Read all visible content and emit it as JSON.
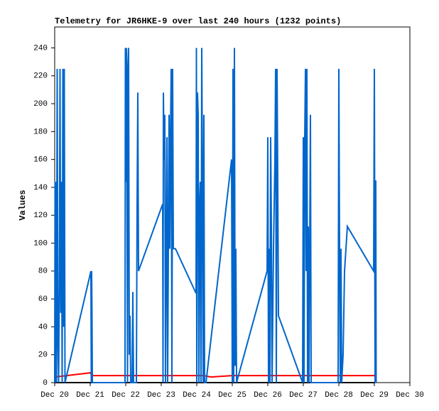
{
  "chart_data": {
    "type": "line",
    "title": "Telemetry for JR6HKE-9 over last 240 hours (1232 points)",
    "y_label": "Values",
    "xlim": [
      20,
      30
    ],
    "xticks": [
      {
        "value": 20,
        "label": "Dec 20"
      },
      {
        "value": 21,
        "label": "Dec 21"
      },
      {
        "value": 22,
        "label": "Dec 22"
      },
      {
        "value": 23,
        "label": "Dec 23"
      },
      {
        "value": 24,
        "label": "Dec 24"
      },
      {
        "value": 25,
        "label": "Dec 25"
      },
      {
        "value": 26,
        "label": "Dec 26"
      },
      {
        "value": 27,
        "label": "Dec 27"
      },
      {
        "value": 28,
        "label": "Dec 28"
      },
      {
        "value": 29,
        "label": "Dec 29"
      },
      {
        "value": 30,
        "label": "Dec 30"
      }
    ],
    "ylim": [
      0,
      255
    ],
    "yticks": [
      0,
      20,
      40,
      60,
      80,
      100,
      120,
      140,
      160,
      180,
      200,
      220,
      240
    ],
    "grid": false,
    "series": [
      {
        "color": "#000000",
        "x": [
          20,
          29
        ],
        "values": [
          0,
          0
        ]
      },
      {
        "color": "#ff0000",
        "x": [
          20.0,
          21.0,
          21.05,
          24.2,
          24.4,
          25.0,
          29.0
        ],
        "values": [
          4,
          7,
          5,
          5,
          4,
          5,
          5
        ]
      },
      {
        "color": "#0066cc",
        "x": [
          20.0,
          20.01,
          20.02,
          20.03,
          20.05,
          20.07,
          20.09,
          20.11,
          20.13,
          20.15,
          20.17,
          20.19,
          20.21,
          20.23,
          20.25,
          20.27,
          20.29,
          21.02,
          21.03,
          21.04,
          21.05,
          21.06,
          21.98,
          21.99,
          22.0,
          22.02,
          22.03,
          22.05,
          22.06,
          22.08,
          22.1,
          22.12,
          22.14,
          22.18,
          22.2,
          22.22,
          22.3,
          22.32,
          22.34,
          22.36,
          23.04,
          23.05,
          23.06,
          23.08,
          23.1,
          23.12,
          23.16,
          23.18,
          23.22,
          23.24,
          23.26,
          23.28,
          23.3,
          23.32,
          23.34,
          23.4,
          23.98,
          23.99,
          24.0,
          24.02,
          24.04,
          24.06,
          24.08,
          24.1,
          24.12,
          24.14,
          24.16,
          24.18,
          24.2,
          24.22,
          24.26,
          24.98,
          25.0,
          25.02,
          25.04,
          25.06,
          25.08,
          25.1,
          25.12,
          25.98,
          26.0,
          26.02,
          26.04,
          26.06,
          26.08,
          26.1,
          26.12,
          26.16,
          26.2,
          26.22,
          26.24,
          26.26,
          26.28,
          26.3,
          26.98,
          27.0,
          27.02,
          27.04,
          27.06,
          27.08,
          27.1,
          27.12,
          27.14,
          27.16,
          27.2,
          27.22,
          27.98,
          28.0,
          28.02,
          28.04,
          28.06,
          28.08,
          28.12,
          28.16,
          28.2,
          28.24,
          28.98,
          29.0,
          29.02,
          29.04,
          29.05
        ],
        "values": [
          0,
          144,
          0,
          144,
          0,
          225,
          30,
          0,
          70,
          225,
          50,
          144,
          0,
          225,
          40,
          225,
          0,
          80,
          0,
          80,
          48,
          0,
          0,
          240,
          144,
          240,
          192,
          0,
          225,
          240,
          20,
          48,
          0,
          0,
          65,
          0,
          0,
          128,
          208,
          80,
          128,
          0,
          208,
          160,
          192,
          0,
          176,
          0,
          192,
          96,
          176,
          225,
          0,
          225,
          96,
          96,
          64,
          240,
          0,
          208,
          192,
          0,
          128,
          144,
          0,
          240,
          144,
          0,
          192,
          0,
          0,
          160,
          0,
          225,
          0,
          240,
          12,
          96,
          0,
          80,
          176,
          0,
          96,
          0,
          176,
          112,
          0,
          96,
          160,
          225,
          0,
          225,
          144,
          48,
          0,
          176,
          0,
          176,
          225,
          80,
          225,
          0,
          112,
          0,
          192,
          0,
          0,
          225,
          96,
          0,
          96,
          0,
          20,
          80,
          96,
          112,
          80,
          225,
          0,
          145,
          0
        ]
      }
    ]
  }
}
